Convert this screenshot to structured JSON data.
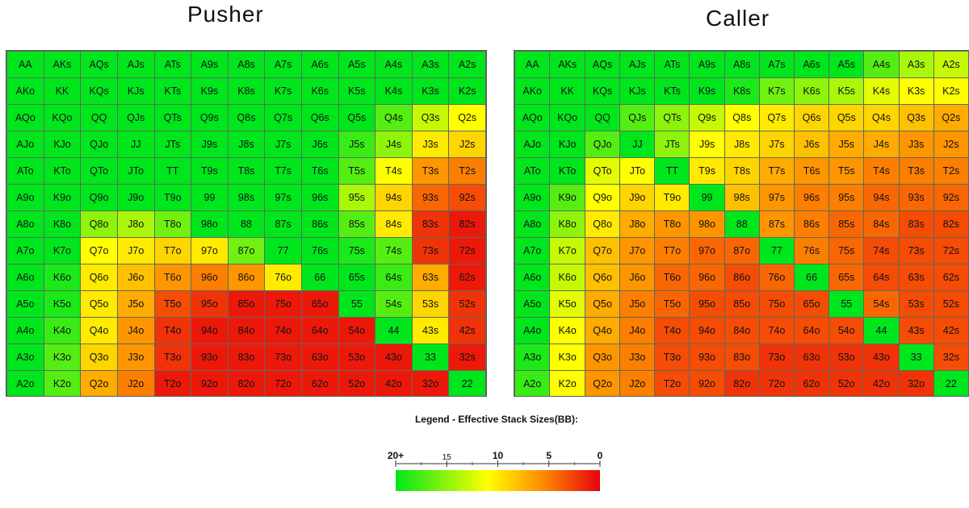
{
  "titles": {
    "pusher": "Pusher",
    "caller": "Caller"
  },
  "legend": {
    "title": "Legend - Effective Stack Sizes(BB):",
    "ticks": [
      {
        "label": "20+",
        "value": 20,
        "bold": true
      },
      {
        "label": "15",
        "value": 15,
        "bold": false
      },
      {
        "label": "10",
        "value": 10,
        "bold": true
      },
      {
        "label": "5",
        "value": 5,
        "bold": true
      },
      {
        "label": "0",
        "value": 0,
        "bold": true
      }
    ],
    "colors": [
      "#00e61c",
      "#ffff00",
      "#ff8c00",
      "#e8000d"
    ]
  },
  "chart_data": [
    {
      "type": "heatmap",
      "title": "Pusher",
      "value_unit": "BB",
      "labels": [
        [
          "AA",
          "AKs",
          "AQs",
          "AJs",
          "ATs",
          "A9s",
          "A8s",
          "A7s",
          "A6s",
          "A5s",
          "A4s",
          "A3s",
          "A2s"
        ],
        [
          "AKo",
          "KK",
          "KQs",
          "KJs",
          "KTs",
          "K9s",
          "K8s",
          "K7s",
          "K6s",
          "K5s",
          "K4s",
          "K3s",
          "K2s"
        ],
        [
          "AQo",
          "KQo",
          "QQ",
          "QJs",
          "QTs",
          "Q9s",
          "Q8s",
          "Q7s",
          "Q6s",
          "Q5s",
          "Q4s",
          "Q3s",
          "Q2s"
        ],
        [
          "AJo",
          "KJo",
          "QJo",
          "JJ",
          "JTs",
          "J9s",
          "J8s",
          "J7s",
          "J6s",
          "J5s",
          "J4s",
          "J3s",
          "J2s"
        ],
        [
          "ATo",
          "KTo",
          "QTo",
          "JTo",
          "TT",
          "T9s",
          "T8s",
          "T7s",
          "T6s",
          "T5s",
          "T4s",
          "T3s",
          "T2s"
        ],
        [
          "A9o",
          "K9o",
          "Q9o",
          "J9o",
          "T9o",
          "99",
          "98s",
          "97s",
          "96s",
          "95s",
          "94s",
          "93s",
          "92s"
        ],
        [
          "A8o",
          "K8o",
          "Q8o",
          "J8o",
          "T8o",
          "98o",
          "88",
          "87s",
          "86s",
          "85s",
          "84s",
          "83s",
          "82s"
        ],
        [
          "A7o",
          "K7o",
          "Q7o",
          "J7o",
          "T7o",
          "97o",
          "87o",
          "77",
          "76s",
          "75s",
          "74s",
          "73s",
          "72s"
        ],
        [
          "A6o",
          "K6o",
          "Q6o",
          "J6o",
          "T6o",
          "96o",
          "86o",
          "76o",
          "66",
          "65s",
          "64s",
          "63s",
          "62s"
        ],
        [
          "A5o",
          "K5o",
          "Q5o",
          "J5o",
          "T5o",
          "95o",
          "85o",
          "75o",
          "65o",
          "55",
          "54s",
          "53s",
          "52s"
        ],
        [
          "A4o",
          "K4o",
          "Q4o",
          "J4o",
          "T4o",
          "94o",
          "84o",
          "74o",
          "64o",
          "54o",
          "44",
          "43s",
          "42s"
        ],
        [
          "A3o",
          "K3o",
          "Q3o",
          "J3o",
          "T3o",
          "93o",
          "83o",
          "73o",
          "63o",
          "53o",
          "43o",
          "33",
          "32s"
        ],
        [
          "A2o",
          "K2o",
          "Q2o",
          "J2o",
          "T2o",
          "92o",
          "82o",
          "72o",
          "62o",
          "52o",
          "42o",
          "32o",
          "22"
        ]
      ],
      "values": [
        [
          20,
          20,
          20,
          20,
          20,
          20,
          20,
          20,
          20,
          20,
          20,
          20,
          20
        ],
        [
          20,
          20,
          20,
          20,
          20,
          20,
          20,
          20,
          20,
          20,
          20,
          20,
          20
        ],
        [
          20,
          20,
          20,
          20,
          20,
          20,
          20,
          20,
          20,
          20,
          17,
          13,
          11
        ],
        [
          20,
          20,
          20,
          20,
          20,
          20,
          20,
          20,
          20,
          18,
          15,
          10,
          9
        ],
        [
          20,
          20,
          20,
          20,
          20,
          20,
          20,
          20,
          20,
          17,
          11,
          6,
          5
        ],
        [
          20,
          20,
          20,
          20,
          20,
          20,
          20,
          20,
          20,
          14,
          9,
          4,
          3
        ],
        [
          20,
          20,
          15,
          14,
          16,
          20,
          20,
          20,
          20,
          17,
          10,
          2,
          1
        ],
        [
          20,
          20,
          11,
          10,
          9,
          10,
          16,
          20,
          20,
          19,
          17,
          2,
          1
        ],
        [
          20,
          19,
          10,
          8,
          6,
          5,
          6,
          10,
          20,
          20,
          18,
          7,
          1
        ],
        [
          20,
          19,
          10,
          7,
          3,
          2,
          1,
          1,
          1,
          20,
          17,
          9,
          2
        ],
        [
          20,
          18,
          10,
          6,
          2,
          1,
          1,
          1,
          1,
          1,
          20,
          10,
          2
        ],
        [
          20,
          17,
          9,
          6,
          2,
          1,
          1,
          1,
          1,
          1,
          1,
          20,
          1
        ],
        [
          20,
          17,
          7,
          5,
          1,
          1,
          1,
          1,
          1,
          1,
          1,
          1,
          20
        ]
      ]
    },
    {
      "type": "heatmap",
      "title": "Caller",
      "value_unit": "BB",
      "labels": [
        [
          "AA",
          "AKs",
          "AQs",
          "AJs",
          "ATs",
          "A9s",
          "A8s",
          "A7s",
          "A6s",
          "A5s",
          "A4s",
          "A3s",
          "A2s"
        ],
        [
          "AKo",
          "KK",
          "KQs",
          "KJs",
          "KTs",
          "K9s",
          "K8s",
          "K7s",
          "K6s",
          "K5s",
          "K4s",
          "K3s",
          "K2s"
        ],
        [
          "AQo",
          "KQo",
          "QQ",
          "QJs",
          "QTs",
          "Q9s",
          "Q8s",
          "Q7s",
          "Q6s",
          "Q5s",
          "Q4s",
          "Q3s",
          "Q2s"
        ],
        [
          "AJo",
          "KJo",
          "QJo",
          "JJ",
          "JTs",
          "J9s",
          "J8s",
          "J7s",
          "J6s",
          "J5s",
          "J4s",
          "J3s",
          "J2s"
        ],
        [
          "ATo",
          "KTo",
          "QTo",
          "JTo",
          "TT",
          "T9s",
          "T8s",
          "T7s",
          "T6s",
          "T5s",
          "T4s",
          "T3s",
          "T2s"
        ],
        [
          "A9o",
          "K9o",
          "Q9o",
          "J9o",
          "T9o",
          "99",
          "98s",
          "97s",
          "96s",
          "95s",
          "94s",
          "93s",
          "92s"
        ],
        [
          "A8o",
          "K8o",
          "Q8o",
          "J8o",
          "T8o",
          "98o",
          "88",
          "87s",
          "86s",
          "85s",
          "84s",
          "83s",
          "82s"
        ],
        [
          "A7o",
          "K7o",
          "Q7o",
          "J7o",
          "T7o",
          "97o",
          "87o",
          "77",
          "76s",
          "75s",
          "74s",
          "73s",
          "72s"
        ],
        [
          "A6o",
          "K6o",
          "Q6o",
          "J6o",
          "T6o",
          "96o",
          "86o",
          "76o",
          "66",
          "65s",
          "64s",
          "63s",
          "62s"
        ],
        [
          "A5o",
          "K5o",
          "Q5o",
          "J5o",
          "T5o",
          "95o",
          "85o",
          "75o",
          "65o",
          "55",
          "54s",
          "53s",
          "52s"
        ],
        [
          "A4o",
          "K4o",
          "Q4o",
          "J4o",
          "T4o",
          "94o",
          "84o",
          "74o",
          "64o",
          "54o",
          "44",
          "43s",
          "42s"
        ],
        [
          "A3o",
          "K3o",
          "Q3o",
          "J3o",
          "T3o",
          "93o",
          "83o",
          "73o",
          "63o",
          "53o",
          "43o",
          "33",
          "32s"
        ],
        [
          "A2o",
          "K2o",
          "Q2o",
          "J2o",
          "T2o",
          "92o",
          "82o",
          "72o",
          "62o",
          "52o",
          "42o",
          "32o",
          "22"
        ]
      ],
      "values": [
        [
          20,
          20,
          20,
          20,
          20,
          20,
          20,
          20,
          20,
          20,
          17,
          14,
          13
        ],
        [
          20,
          20,
          20,
          20,
          20,
          20,
          19,
          16,
          15,
          14,
          12,
          11,
          11
        ],
        [
          20,
          20,
          20,
          17,
          15,
          13,
          11,
          10,
          9,
          9,
          9,
          8,
          7
        ],
        [
          20,
          20,
          17,
          20,
          15,
          11,
          10,
          9,
          8,
          7,
          7,
          6,
          6
        ],
        [
          20,
          20,
          12,
          11,
          20,
          10,
          9,
          7,
          6,
          6,
          5,
          5,
          5
        ],
        [
          20,
          17,
          11,
          9,
          10,
          20,
          8,
          6,
          5,
          5,
          4,
          4,
          4
        ],
        [
          20,
          15,
          10,
          7,
          6,
          6,
          20,
          6,
          5,
          4,
          4,
          3,
          3
        ],
        [
          20,
          13,
          8,
          6,
          5,
          4,
          4,
          20,
          5,
          4,
          3,
          3,
          3
        ],
        [
          20,
          13,
          8,
          6,
          4,
          4,
          3,
          4,
          20,
          4,
          3,
          3,
          3
        ],
        [
          20,
          12,
          7,
          5,
          4,
          3,
          3,
          3,
          3,
          20,
          4,
          3,
          3
        ],
        [
          20,
          11,
          7,
          5,
          3,
          3,
          3,
          3,
          3,
          3,
          20,
          3,
          3
        ],
        [
          19,
          11,
          6,
          5,
          3,
          3,
          3,
          2,
          2,
          2,
          2,
          20,
          3
        ],
        [
          18,
          11,
          6,
          5,
          3,
          3,
          2,
          2,
          2,
          2,
          2,
          2,
          20
        ]
      ]
    }
  ]
}
